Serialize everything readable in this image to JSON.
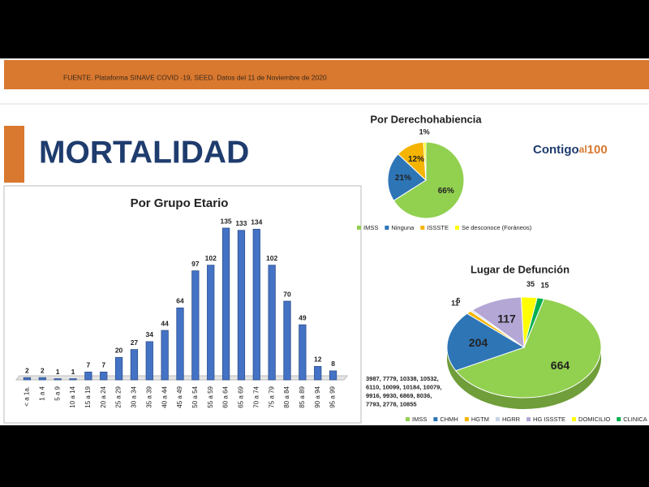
{
  "header": {
    "source": "FUENTE. Plataforma SINAVE COVID -19, SEED. Datos del 11 de Noviembre de 2020"
  },
  "title": "MORTALIDAD",
  "logo": [
    "Contigo",
    "al",
    "100"
  ],
  "chart_data": [
    {
      "type": "bar",
      "title": "Por Grupo Etario",
      "color": "#4472c4",
      "categories": [
        "< a 1a.",
        "1 a 4",
        "5 a 9",
        "10 a 14",
        "15 a 19",
        "20 a 24",
        "25 a 29",
        "30 a 34",
        "35 a 39",
        "40 a 44",
        "45 a 49",
        "50 a 54",
        "55 a 59",
        "60 a 64",
        "65 a 69",
        "70 a 74",
        "75 a 79",
        "80 a 84",
        "85 a 89",
        "90 a 94",
        "95 a 99"
      ],
      "values": [
        2,
        2,
        1,
        1,
        7,
        7,
        20,
        27,
        34,
        44,
        64,
        97,
        102,
        135,
        133,
        134,
        102,
        70,
        49,
        12,
        8
      ]
    },
    {
      "type": "pie",
      "title": "Por Derechohabiencia",
      "categories": [
        "IMSS",
        "Ninguna",
        "ISSSTE",
        "Se desconoce (Foráneos)"
      ],
      "values": [
        66,
        21,
        12,
        1
      ],
      "value_labels": [
        "66%",
        "21%",
        "12%",
        "1%"
      ],
      "colors": [
        "#92d050",
        "#2e75b6",
        "#f5b400",
        "#ffff00"
      ]
    },
    {
      "type": "pie",
      "3d": true,
      "title": "Lugar de Defunción",
      "categories": [
        "IMSS",
        "CHMH",
        "HGTM",
        "HGRR",
        "HG ISSSTE",
        "DOMICILIO",
        "CLINICA PRIVADA"
      ],
      "values": [
        664,
        204,
        11,
        5,
        117,
        35,
        15
      ],
      "colors": [
        "#92d050",
        "#2e75b6",
        "#f5b400",
        "#c5d4ea",
        "#b4a7d6",
        "#ffff00",
        "#00b050"
      ],
      "annotation": [
        "3987, 7779, 10338, 10532,",
        "6110, 10099, 10184, 10079,",
        "9916, 9930, 6869, 8036,",
        "7793, 2778, 10855"
      ]
    }
  ]
}
